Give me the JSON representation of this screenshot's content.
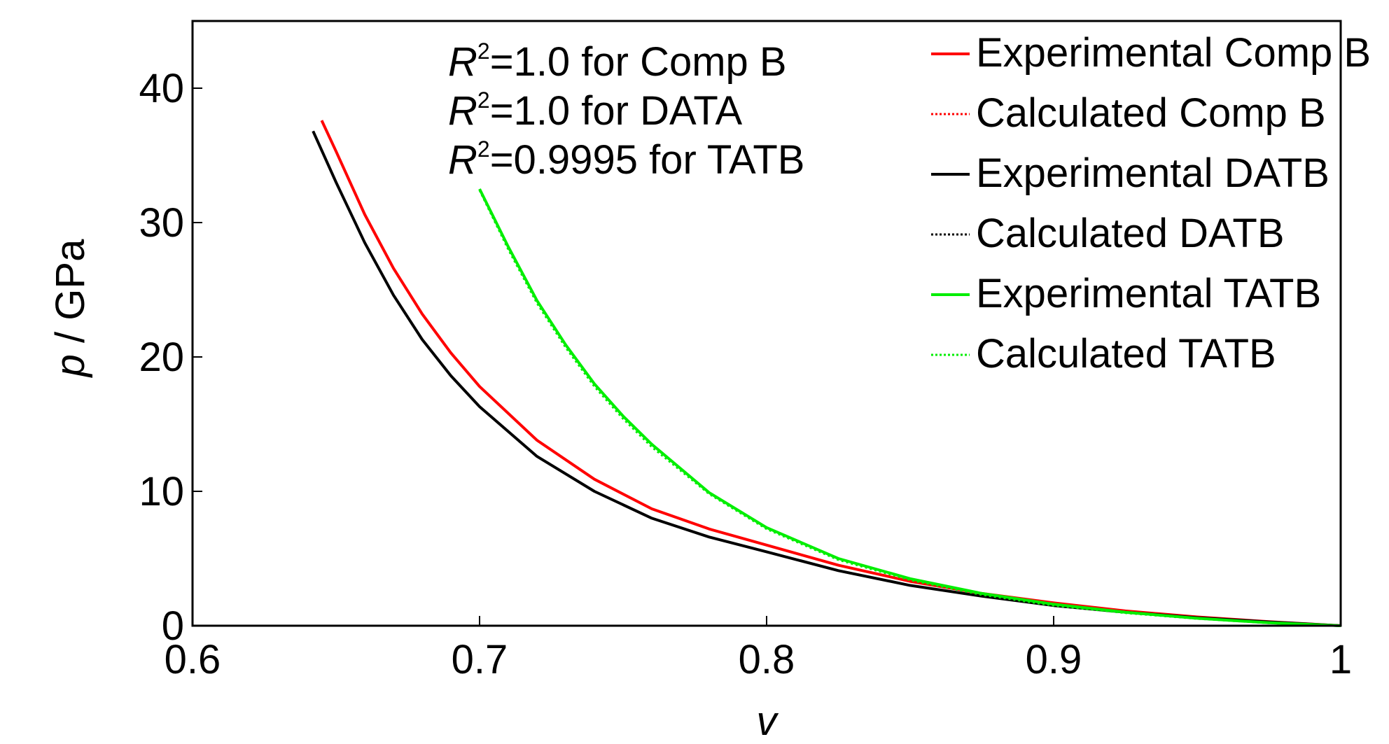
{
  "chart_data": {
    "type": "line",
    "title": "",
    "xlabel": "v",
    "ylabel": "p / GPa",
    "xlim": [
      0.6,
      1.0
    ],
    "ylim": [
      0,
      45
    ],
    "xticks": [
      0.6,
      0.7,
      0.8,
      0.9,
      1.0
    ],
    "xtick_labels": [
      "0.6",
      "0.7",
      "0.8",
      "0.9",
      "1"
    ],
    "yticks": [
      0,
      10,
      20,
      30,
      40
    ],
    "ytick_labels": [
      "0",
      "10",
      "20",
      "30",
      "40"
    ],
    "grid": false,
    "legend_position": "top-right",
    "annotations": [
      {
        "prefix": "R",
        "sup": "2",
        "text": "=1.0 for Comp B"
      },
      {
        "prefix": "R",
        "sup": "2",
        "text": "=1.0 for DATA"
      },
      {
        "prefix": "R",
        "sup": "2",
        "text": "=0.9995 for TATB"
      }
    ],
    "series": [
      {
        "name": "Experimental Comp B",
        "color": "#ff0000",
        "style": "solid",
        "x": [
          0.645,
          0.65,
          0.66,
          0.67,
          0.68,
          0.69,
          0.7,
          0.72,
          0.74,
          0.76,
          0.78,
          0.8,
          0.825,
          0.85,
          0.875,
          0.9,
          0.925,
          0.95,
          0.975,
          1.0
        ],
        "y": [
          37.6,
          35.3,
          30.6,
          26.6,
          23.2,
          20.3,
          17.8,
          13.8,
          10.9,
          8.7,
          7.2,
          6.0,
          4.5,
          3.3,
          2.4,
          1.7,
          1.1,
          0.65,
          0.3,
          0.0
        ]
      },
      {
        "name": "Calculated Comp B",
        "color": "#ff0000",
        "style": "dotted",
        "x": [
          0.645,
          0.65,
          0.66,
          0.67,
          0.68,
          0.69,
          0.7,
          0.72,
          0.74,
          0.76,
          0.78,
          0.8,
          0.825,
          0.85,
          0.875,
          0.9,
          0.925,
          0.95,
          0.975,
          1.0
        ],
        "y": [
          37.6,
          35.3,
          30.6,
          26.6,
          23.2,
          20.3,
          17.8,
          13.8,
          10.9,
          8.7,
          7.2,
          6.0,
          4.5,
          3.3,
          2.4,
          1.7,
          1.1,
          0.65,
          0.3,
          0.0
        ]
      },
      {
        "name": "Experimental DATB",
        "color": "#000000",
        "style": "solid",
        "x": [
          0.642,
          0.65,
          0.66,
          0.67,
          0.68,
          0.69,
          0.7,
          0.72,
          0.74,
          0.76,
          0.78,
          0.8,
          0.825,
          0.85,
          0.875,
          0.9,
          0.925,
          0.95,
          0.975,
          1.0
        ],
        "y": [
          36.8,
          33.0,
          28.5,
          24.6,
          21.3,
          18.6,
          16.3,
          12.6,
          10.0,
          8.0,
          6.6,
          5.5,
          4.1,
          3.0,
          2.2,
          1.5,
          1.0,
          0.6,
          0.28,
          0.0
        ]
      },
      {
        "name": "Calculated DATB",
        "color": "#000000",
        "style": "dotted",
        "x": [
          0.642,
          0.65,
          0.66,
          0.67,
          0.68,
          0.69,
          0.7,
          0.72,
          0.74,
          0.76,
          0.78,
          0.8,
          0.825,
          0.85,
          0.875,
          0.9,
          0.925,
          0.95,
          0.975,
          1.0
        ],
        "y": [
          36.8,
          33.0,
          28.5,
          24.6,
          21.3,
          18.6,
          16.3,
          12.6,
          10.0,
          8.0,
          6.6,
          5.5,
          4.1,
          3.0,
          2.2,
          1.5,
          1.0,
          0.6,
          0.28,
          0.0
        ]
      },
      {
        "name": "Experimental TATB",
        "color": "#00ee00",
        "style": "solid",
        "x": [
          0.7,
          0.71,
          0.72,
          0.73,
          0.74,
          0.75,
          0.76,
          0.78,
          0.8,
          0.825,
          0.85,
          0.875,
          0.9,
          0.925,
          0.95,
          0.975,
          1.0
        ],
        "y": [
          32.5,
          28.2,
          24.2,
          20.9,
          18.0,
          15.6,
          13.5,
          9.9,
          7.3,
          5.0,
          3.5,
          2.4,
          1.6,
          1.0,
          0.55,
          0.22,
          0.0
        ]
      },
      {
        "name": "Calculated TATB",
        "color": "#00ee00",
        "style": "dotted",
        "x": [
          0.7,
          0.71,
          0.72,
          0.73,
          0.74,
          0.75,
          0.76,
          0.78,
          0.8,
          0.825,
          0.85,
          0.875,
          0.9,
          0.925,
          0.95,
          0.975,
          1.0
        ],
        "y": [
          32.4,
          28.0,
          24.0,
          20.7,
          17.8,
          15.4,
          13.3,
          9.8,
          7.2,
          4.9,
          3.4,
          2.3,
          1.5,
          0.95,
          0.52,
          0.2,
          0.0
        ]
      }
    ]
  }
}
